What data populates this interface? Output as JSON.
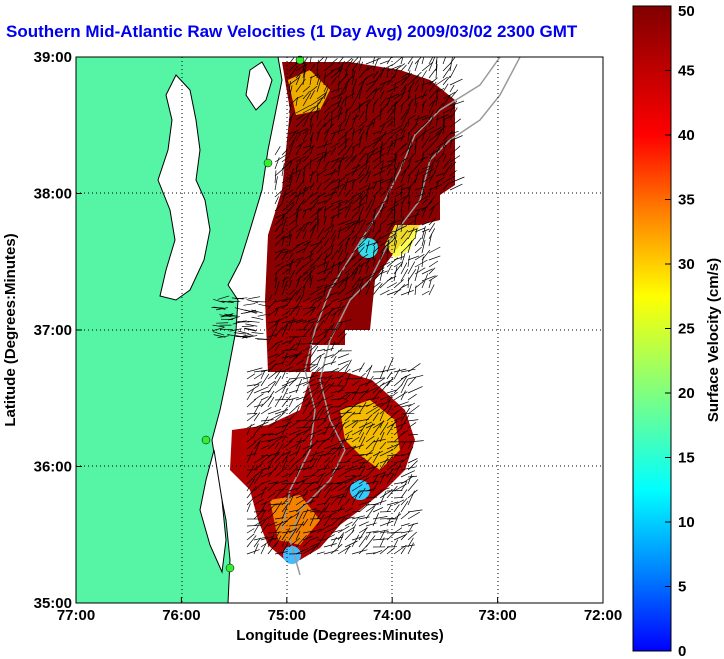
{
  "title": "Southern Mid-Atlantic Raw Velocities (1 Day Avg) 2009/03/02 2300 GMT",
  "axes": {
    "xlabel": "Longitude (Degrees:Minutes)",
    "ylabel": "Latitude (Degrees:Minutes)",
    "xticks": [
      "77:00",
      "76:00",
      "75:00",
      "74:00",
      "73:00",
      "72:00"
    ],
    "yticks": [
      "39:00",
      "38:00",
      "37:00",
      "36:00",
      "35:00"
    ],
    "xlim": [
      -77,
      -72
    ],
    "ylim": [
      35,
      39
    ],
    "grid": "dotted"
  },
  "colorbar": {
    "label": "Surface Velocity (cm/s)",
    "range": [
      0,
      50
    ],
    "ticks": [
      "50",
      "45",
      "40",
      "35",
      "30",
      "25",
      "20",
      "15",
      "10",
      "5",
      "0"
    ]
  },
  "colors": {
    "land": "#55f5a5",
    "title": "#0000ee",
    "high_velocity": "#8b0000",
    "low_velocity": "#00aaff"
  },
  "stations": [
    "station-1",
    "station-2",
    "station-3",
    "station-4"
  ]
}
